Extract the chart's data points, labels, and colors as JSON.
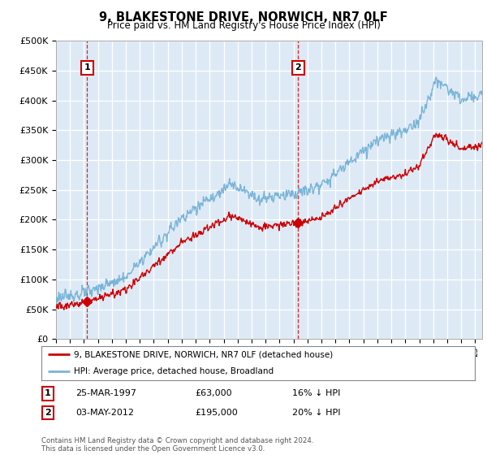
{
  "title": "9, BLAKESTONE DRIVE, NORWICH, NR7 0LF",
  "subtitle": "Price paid vs. HM Land Registry's House Price Index (HPI)",
  "ylabel_ticks": [
    "£0",
    "£50K",
    "£100K",
    "£150K",
    "£200K",
    "£250K",
    "£300K",
    "£350K",
    "£400K",
    "£450K",
    "£500K"
  ],
  "ytick_values": [
    0,
    50000,
    100000,
    150000,
    200000,
    250000,
    300000,
    350000,
    400000,
    450000,
    500000
  ],
  "ylim": [
    0,
    500000
  ],
  "xlim_start": 1995.0,
  "xlim_end": 2025.5,
  "hpi_color": "#7ab4d8",
  "price_color": "#cc0000",
  "background_color": "#ddeaf6",
  "grid_color": "#ffffff",
  "sale1_x": 1997.23,
  "sale1_y": 63000,
  "sale2_x": 2012.34,
  "sale2_y": 195000,
  "sale1_label": "1",
  "sale2_label": "2",
  "legend_line1": "9, BLAKESTONE DRIVE, NORWICH, NR7 0LF (detached house)",
  "legend_line2": "HPI: Average price, detached house, Broadland",
  "annotation1_date": "25-MAR-1997",
  "annotation1_price": "£63,000",
  "annotation1_hpi": "16% ↓ HPI",
  "annotation2_date": "03-MAY-2012",
  "annotation2_price": "£195,000",
  "annotation2_hpi": "20% ↓ HPI",
  "footer": "Contains HM Land Registry data © Crown copyright and database right 2024.\nThis data is licensed under the Open Government Licence v3.0."
}
